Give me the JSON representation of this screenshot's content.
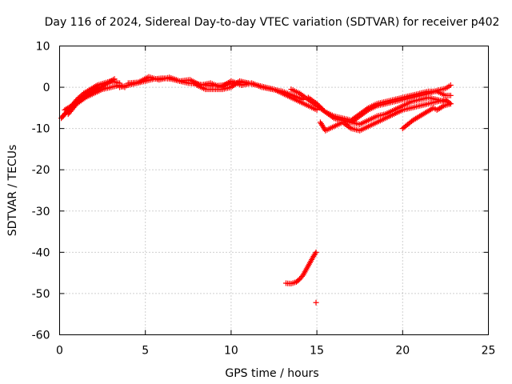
{
  "chart_data": {
    "type": "scatter",
    "title": "Day 116 of 2024, Sidereal Day-to-day VTEC variation (SDTVAR) for receiver p402",
    "xlabel": "GPS time / hours",
    "ylabel": "SDTVAR / TECUs",
    "xlim": [
      0,
      25
    ],
    "ylim": [
      -60,
      10
    ],
    "xticks": [
      "0",
      "5",
      "10",
      "15",
      "20",
      "25"
    ],
    "yticks": [
      "10",
      "0",
      "-10",
      "-20",
      "-30",
      "-40",
      "-50",
      "-60"
    ],
    "grid": true,
    "marker": "plus",
    "color": "#ff0000",
    "series": [
      {
        "name": "track-1",
        "x": [
          0.1,
          0.4,
          0.8,
          1.2,
          1.6,
          2.0,
          2.4,
          2.8,
          3.2
        ],
        "y": [
          -7.5,
          -6.0,
          -4.5,
          -3.0,
          -2.0,
          -1.0,
          0.0,
          1.0,
          2.0
        ]
      },
      {
        "name": "track-2",
        "x": [
          0.3,
          0.7,
          1.0,
          1.4,
          1.8,
          2.2,
          2.6,
          3.0,
          3.5
        ],
        "y": [
          -5.5,
          -4.5,
          -3.0,
          -1.5,
          -0.5,
          0.5,
          1.0,
          1.5,
          1.0
        ]
      },
      {
        "name": "track-3",
        "x": [
          0.5,
          1.0,
          1.5,
          2.0,
          2.5,
          3.0,
          3.5,
          3.8
        ],
        "y": [
          -6.5,
          -4.0,
          -2.5,
          -1.5,
          -0.5,
          0.0,
          0.5,
          0.0
        ]
      },
      {
        "name": "track-4",
        "x": [
          0.2,
          0.6,
          1.0,
          1.4,
          1.8,
          2.2
        ],
        "y": [
          -7.0,
          -5.0,
          -3.5,
          -2.0,
          -1.0,
          0.0
        ]
      },
      {
        "name": "track-5",
        "x": [
          3.5,
          4.0,
          4.5,
          5.0,
          5.5,
          6.0,
          6.5,
          7.0,
          7.5,
          8.0,
          8.5,
          9.0,
          9.5,
          10.0,
          10.5,
          11.0,
          11.5,
          12.0,
          12.5,
          13.0,
          13.5,
          14.0,
          14.5,
          15.0
        ],
        "y": [
          0.0,
          0.5,
          1.0,
          1.5,
          2.0,
          2.2,
          2.0,
          1.5,
          1.0,
          0.8,
          0.5,
          0.3,
          0.5,
          0.8,
          1.2,
          1.0,
          0.5,
          0.0,
          -0.5,
          -1.5,
          -2.5,
          -3.5,
          -4.5,
          -5.5
        ]
      },
      {
        "name": "track-6",
        "x": [
          4.0,
          4.6,
          5.2,
          5.8,
          6.4,
          7.0,
          7.6,
          8.2,
          8.8,
          9.4,
          10.0,
          10.6,
          11.2,
          11.8,
          12.4,
          13.0,
          13.6,
          14.2
        ],
        "y": [
          1.0,
          1.2,
          2.5,
          1.8,
          2.4,
          1.5,
          1.8,
          0.5,
          1.0,
          0.0,
          1.5,
          0.5,
          1.0,
          0.0,
          -0.5,
          -1.0,
          -2.0,
          -3.0
        ]
      },
      {
        "name": "track-7",
        "x": [
          8.0,
          8.5,
          9.0,
          9.5,
          10.0,
          10.5,
          11.0
        ],
        "y": [
          0.5,
          -0.5,
          -0.5,
          -0.5,
          0.0,
          1.5,
          1.0
        ]
      },
      {
        "name": "track-8",
        "x": [
          13.5,
          14.0,
          14.5,
          15.0,
          15.5,
          16.0,
          16.5,
          17.0,
          17.5,
          18.0,
          18.5,
          19.0,
          19.5,
          20.0,
          20.5,
          21.0,
          21.5,
          22.0,
          22.5,
          22.8
        ],
        "y": [
          -0.5,
          -1.5,
          -3.0,
          -4.5,
          -6.0,
          -7.5,
          -8.0,
          -8.5,
          -7.0,
          -5.5,
          -4.5,
          -4.0,
          -3.5,
          -3.0,
          -2.5,
          -2.0,
          -1.5,
          -0.8,
          -0.3,
          0.5
        ]
      },
      {
        "name": "track-9",
        "x": [
          14.5,
          15.0,
          15.5,
          16.0,
          16.5,
          17.0,
          17.5,
          18.0,
          18.5,
          19.0,
          19.5,
          20.0,
          20.5,
          21.0,
          21.5,
          22.0,
          22.5,
          22.8
        ],
        "y": [
          -2.5,
          -4.0,
          -6.0,
          -7.0,
          -7.5,
          -8.0,
          -6.5,
          -5.0,
          -4.0,
          -3.5,
          -3.0,
          -2.5,
          -2.0,
          -1.5,
          -1.0,
          -1.0,
          -2.0,
          -2.0
        ]
      },
      {
        "name": "track-10",
        "x": [
          15.2,
          15.5,
          16.0,
          16.5,
          17.0,
          17.5,
          18.0,
          18.5,
          19.0,
          19.5,
          20.0,
          20.5,
          21.0,
          21.5,
          22.0,
          22.5,
          22.8
        ],
        "y": [
          -8.5,
          -10.5,
          -9.5,
          -8.5,
          -10.0,
          -10.5,
          -9.5,
          -8.5,
          -7.5,
          -6.5,
          -5.5,
          -5.0,
          -4.5,
          -4.0,
          -3.5,
          -3.0,
          -4.0
        ]
      },
      {
        "name": "track-11",
        "x": [
          16.0,
          16.5,
          17.0,
          17.5,
          18.0,
          18.5,
          19.0,
          19.5,
          20.0,
          20.5,
          21.0,
          21.5,
          22.0,
          22.5
        ],
        "y": [
          -7.5,
          -8.0,
          -8.5,
          -9.0,
          -8.0,
          -7.0,
          -6.5,
          -5.5,
          -4.5,
          -3.5,
          -3.0,
          -2.5,
          -3.0,
          -3.5
        ]
      },
      {
        "name": "track-12",
        "x": [
          20.0,
          20.3,
          20.6,
          21.0,
          21.4,
          21.8,
          22.0,
          22.4,
          22.8
        ],
        "y": [
          -10.0,
          -9.0,
          -8.0,
          -7.0,
          -6.0,
          -5.0,
          -5.5,
          -4.5,
          -4.0
        ]
      },
      {
        "name": "track-13",
        "x": [
          13.2,
          13.5,
          13.8,
          14.0,
          14.2,
          14.4,
          14.6,
          14.8,
          14.95
        ],
        "y": [
          -47.5,
          -47.6,
          -47.2,
          -46.5,
          -45.5,
          -44.0,
          -42.5,
          -41.0,
          -40.0
        ]
      },
      {
        "name": "outlier",
        "x": [
          14.95
        ],
        "y": [
          -52.2
        ]
      }
    ]
  }
}
